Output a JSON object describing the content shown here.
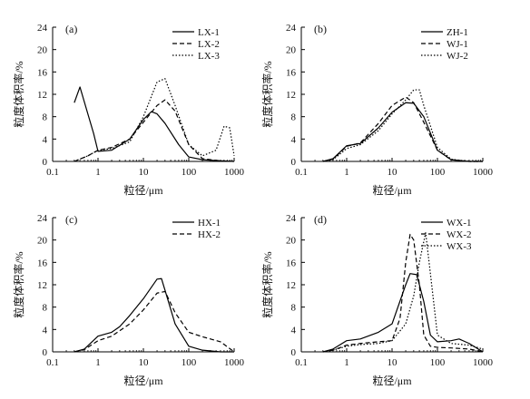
{
  "chart_data": [
    {
      "type": "line",
      "panel_label": "(a)",
      "xlabel": "粒径/μm",
      "ylabel": "粒度体积率/%",
      "xscale": "log",
      "xlim": [
        0.1,
        1000
      ],
      "ylim": [
        0,
        24
      ],
      "xticks": [
        "0.1",
        "1",
        "10",
        "100",
        "1000"
      ],
      "yticks": [
        "0",
        "4",
        "8",
        "12",
        "16",
        "20",
        "24"
      ],
      "legend_position": "top-right",
      "series": [
        {
          "name": "LX-1",
          "dash": "solid",
          "x": [
            0.3,
            0.4,
            0.8,
            1,
            2,
            5,
            10,
            15,
            20,
            30,
            60,
            100,
            200,
            500,
            1000
          ],
          "y": [
            10.5,
            13.3,
            5,
            1.8,
            2,
            4,
            7.5,
            8.9,
            8.5,
            6.8,
            3,
            0.8,
            0.3,
            0.1,
            0
          ]
        },
        {
          "name": "LX-2",
          "dash": "dashed",
          "x": [
            0.3,
            0.6,
            1,
            2,
            5,
            10,
            20,
            30,
            50,
            100,
            200,
            500,
            1000
          ],
          "y": [
            0,
            1,
            2,
            2.5,
            4,
            7,
            10,
            11,
            9,
            3,
            0.5,
            0.1,
            0
          ]
        },
        {
          "name": "LX-3",
          "dash": "dotted",
          "x": [
            0.3,
            0.6,
            1,
            2,
            5,
            10,
            20,
            30,
            50,
            100,
            200,
            400,
            600,
            800,
            1000
          ],
          "y": [
            0,
            1,
            2,
            2.3,
            3.5,
            8,
            14.2,
            14.8,
            10,
            3,
            1,
            2,
            6.3,
            6,
            1
          ]
        }
      ]
    },
    {
      "type": "line",
      "panel_label": "(b)",
      "xlabel": "粒径/μm",
      "ylabel": "粒度体积率/%",
      "xscale": "log",
      "xlim": [
        0.1,
        1000
      ],
      "ylim": [
        0,
        24
      ],
      "xticks": [
        "0.1",
        "1",
        "10",
        "100",
        "1000"
      ],
      "yticks": [
        "0",
        "4",
        "8",
        "12",
        "16",
        "20",
        "24"
      ],
      "legend_position": "top-right",
      "series": [
        {
          "name": "ZH-1",
          "dash": "solid",
          "x": [
            0.3,
            0.5,
            1,
            2,
            5,
            10,
            20,
            30,
            50,
            100,
            200,
            500,
            1000
          ],
          "y": [
            0,
            0.5,
            2.8,
            3.2,
            6,
            8.8,
            10.5,
            10.4,
            8,
            2,
            0.3,
            0,
            0
          ]
        },
        {
          "name": "WJ-1",
          "dash": "dashed",
          "x": [
            0.3,
            0.5,
            1,
            2,
            5,
            10,
            20,
            30,
            50,
            100,
            200,
            500,
            1000
          ],
          "y": [
            0,
            0.4,
            2.7,
            3.3,
            6.8,
            10,
            11.5,
            10.5,
            7,
            2,
            0.3,
            0,
            0
          ]
        },
        {
          "name": "WJ-2",
          "dash": "dotted",
          "x": [
            0.3,
            0.5,
            1,
            2,
            5,
            10,
            20,
            30,
            40,
            50,
            100,
            200,
            500,
            1000
          ],
          "y": [
            0,
            0.3,
            2.3,
            3,
            5.5,
            8.5,
            11,
            12.8,
            12.8,
            10,
            2.5,
            0.4,
            0,
            0
          ]
        }
      ]
    },
    {
      "type": "line",
      "panel_label": "(c)",
      "xlabel": "粒径/μm",
      "ylabel": "粒度体积率/%",
      "xscale": "log",
      "xlim": [
        0.1,
        1000
      ],
      "ylim": [
        0,
        24
      ],
      "xticks": [
        "0.1",
        "1",
        "10",
        "100",
        "1000"
      ],
      "yticks": [
        "0",
        "4",
        "8",
        "12",
        "16",
        "20",
        "24"
      ],
      "legend_position": "top-right",
      "series": [
        {
          "name": "HX-1",
          "dash": "solid",
          "x": [
            0.3,
            0.5,
            1,
            2,
            3,
            5,
            10,
            20,
            25,
            30,
            50,
            100,
            200,
            500,
            1000
          ],
          "y": [
            0,
            0.5,
            2.8,
            3.5,
            4.5,
            6.5,
            9.5,
            13,
            13.1,
            11,
            5,
            1,
            0.3,
            0,
            0
          ]
        },
        {
          "name": "HX-2",
          "dash": "dashed",
          "x": [
            0.3,
            0.5,
            1,
            2,
            5,
            10,
            20,
            30,
            50,
            100,
            200,
            500,
            1000
          ],
          "y": [
            0,
            0.4,
            2,
            2.8,
            5,
            7.5,
            10.5,
            10.8,
            7,
            3.5,
            2.7,
            1.8,
            0
          ]
        }
      ]
    },
    {
      "type": "line",
      "panel_label": "(d)",
      "xlabel": "粒径/μm",
      "ylabel": "粒度体积率/%",
      "xscale": "log",
      "xlim": [
        0.1,
        1000
      ],
      "ylim": [
        0,
        24
      ],
      "xticks": [
        "0.1",
        "1",
        "10",
        "100",
        "1000"
      ],
      "yticks": [
        "0",
        "4",
        "8",
        "12",
        "16",
        "20",
        "24"
      ],
      "legend_position": "top-right",
      "series": [
        {
          "name": "WX-1",
          "dash": "solid",
          "x": [
            0.3,
            0.5,
            1,
            2,
            5,
            10,
            20,
            25,
            35,
            50,
            70,
            100,
            200,
            300,
            500,
            1000
          ],
          "y": [
            0,
            0.5,
            2,
            2.3,
            3.5,
            5,
            12,
            14,
            13.8,
            9,
            3,
            1.8,
            2,
            2.3,
            1.5,
            0
          ]
        },
        {
          "name": "WX-2",
          "dash": "dashed",
          "x": [
            0.3,
            0.5,
            1,
            2,
            5,
            10,
            15,
            20,
            25,
            30,
            40,
            50,
            70,
            100,
            200,
            500,
            1000
          ],
          "y": [
            0,
            0.3,
            1.2,
            1.5,
            1.8,
            2,
            6,
            16,
            21,
            20,
            12,
            3,
            1,
            0.8,
            0.7,
            0.5,
            0
          ]
        },
        {
          "name": "WX-3",
          "dash": "dotted",
          "x": [
            0.3,
            0.5,
            1,
            2,
            5,
            10,
            20,
            30,
            40,
            55,
            70,
            100,
            200,
            500,
            1000
          ],
          "y": [
            0,
            0.3,
            1,
            1.3,
            1.5,
            2,
            5,
            10,
            16,
            21.3,
            14,
            3,
            1.5,
            1.2,
            0.5
          ]
        }
      ]
    }
  ]
}
